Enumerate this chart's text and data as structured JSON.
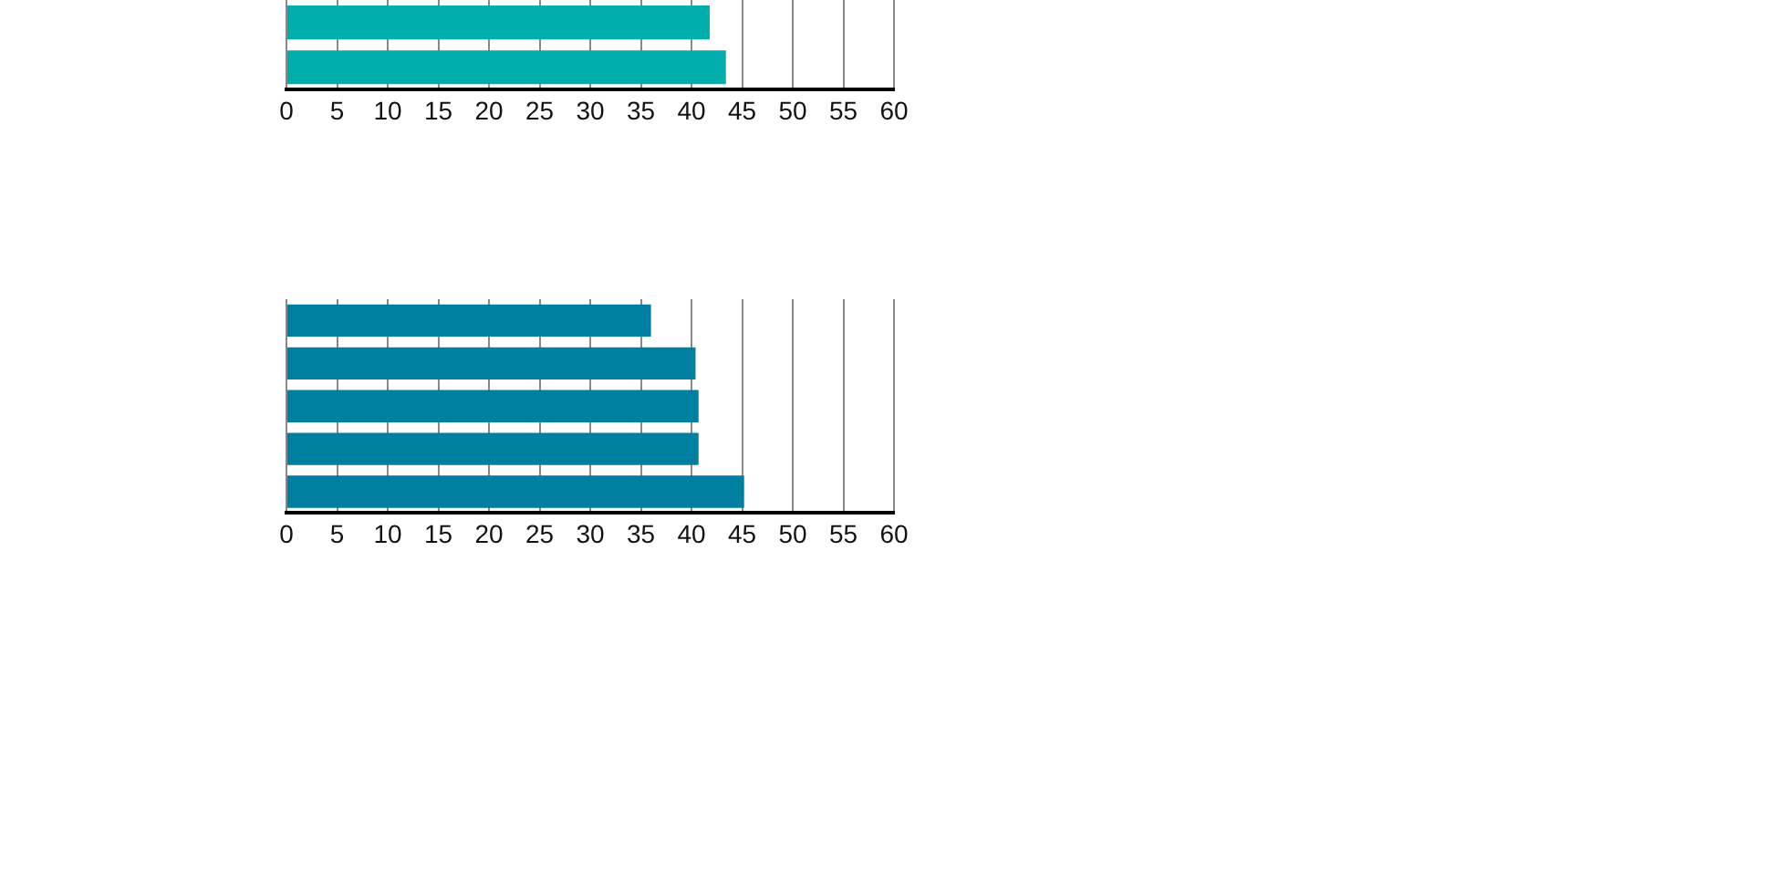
{
  "chart_data": [
    {
      "type": "bar",
      "orientation": "horizontal",
      "categories": [
        null,
        null
      ],
      "values": [
        41.8,
        43.4
      ],
      "color": "#00aeae",
      "xlim": [
        0,
        60
      ],
      "xticks": [
        0,
        5,
        10,
        15,
        20,
        25,
        30,
        35,
        40,
        45,
        50,
        55,
        60
      ],
      "grid": "x",
      "tick_labels": "x",
      "legend": false
    },
    {
      "type": "bar",
      "orientation": "horizontal",
      "categories": [
        null,
        null,
        null,
        null,
        null
      ],
      "values": [
        36.0,
        40.4,
        40.7,
        40.7,
        45.2
      ],
      "color": "#007fa0",
      "xlim": [
        0,
        60
      ],
      "xticks": [
        0,
        5,
        10,
        15,
        20,
        25,
        30,
        35,
        40,
        45,
        50,
        55,
        60
      ],
      "grid": "x",
      "tick_labels": "x",
      "legend": false
    }
  ]
}
